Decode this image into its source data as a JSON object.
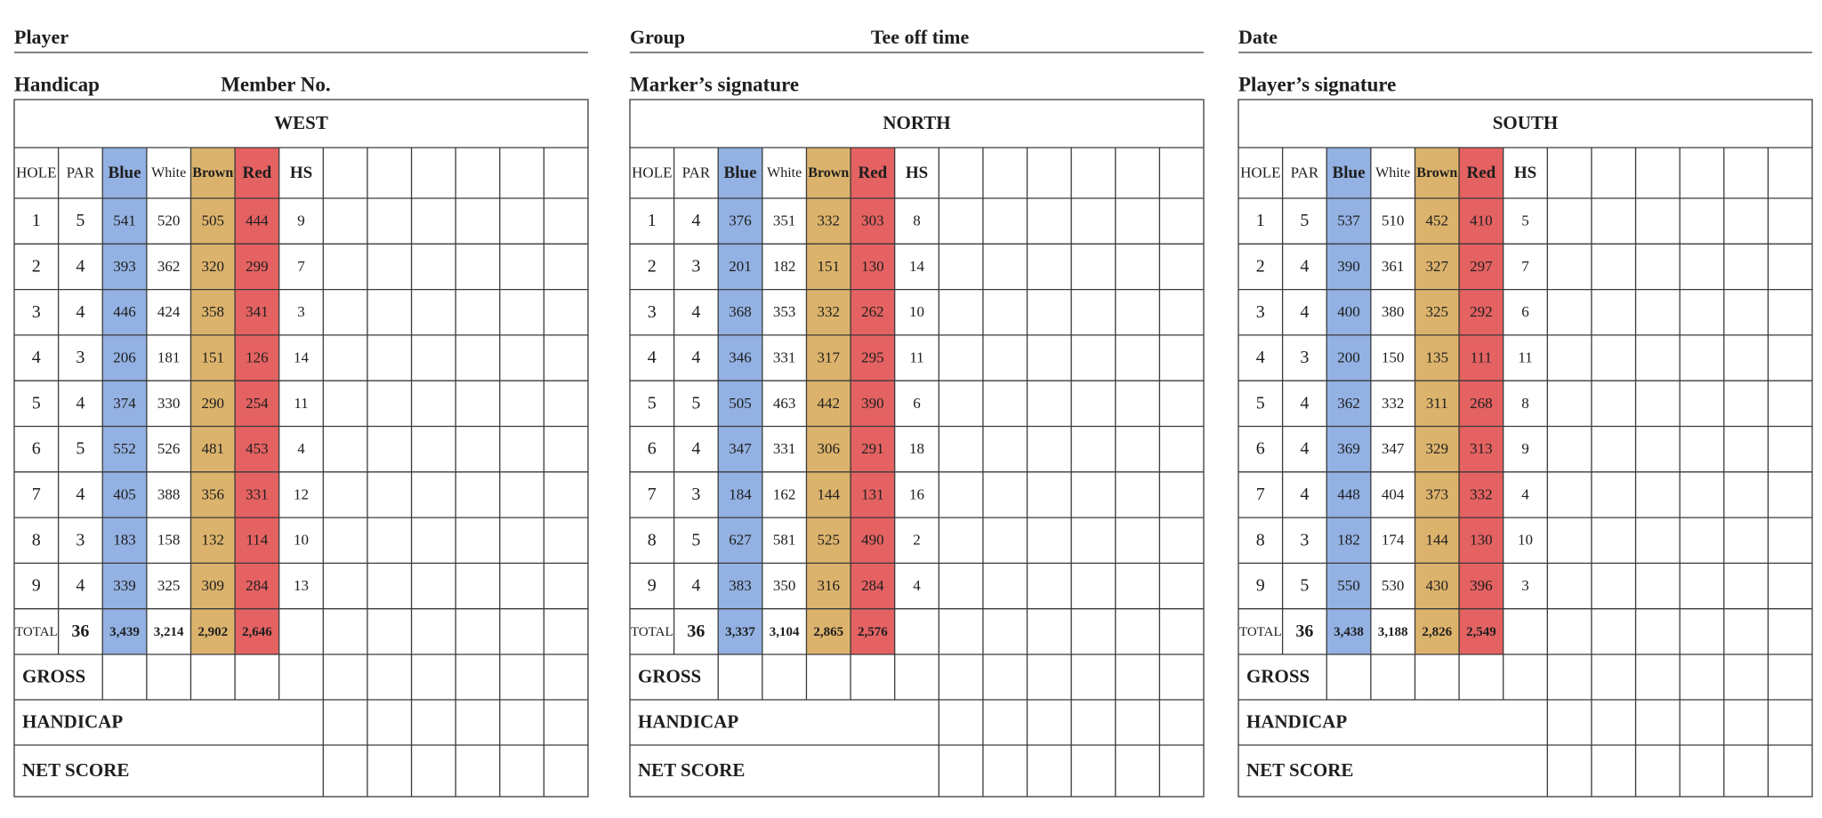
{
  "panels": [
    {
      "line1": [
        "Player"
      ],
      "line2": [
        "Handicap",
        "Member No."
      ],
      "title": "WEST",
      "columns": [
        "HOLE",
        "PAR",
        "Blue",
        "White",
        "Brown",
        "Red",
        "HS"
      ],
      "rows": [
        [
          "1",
          "5",
          "541",
          "520",
          "505",
          "444",
          "9"
        ],
        [
          "2",
          "4",
          "393",
          "362",
          "320",
          "299",
          "7"
        ],
        [
          "3",
          "4",
          "446",
          "424",
          "358",
          "341",
          "3"
        ],
        [
          "4",
          "3",
          "206",
          "181",
          "151",
          "126",
          "14"
        ],
        [
          "5",
          "4",
          "374",
          "330",
          "290",
          "254",
          "11"
        ],
        [
          "6",
          "5",
          "552",
          "526",
          "481",
          "453",
          "4"
        ],
        [
          "7",
          "4",
          "405",
          "388",
          "356",
          "331",
          "12"
        ],
        [
          "8",
          "3",
          "183",
          "158",
          "132",
          "114",
          "10"
        ],
        [
          "9",
          "4",
          "339",
          "325",
          "309",
          "284",
          "13"
        ]
      ],
      "total": [
        "TOTAL",
        "36",
        "3,439",
        "3,214",
        "2,902",
        "2,646"
      ],
      "footer": [
        "GROSS",
        "HANDICAP",
        "NET SCORE"
      ]
    },
    {
      "line1": [
        "Group",
        "Tee off time"
      ],
      "line2": [
        "Marker’s signature"
      ],
      "title": "NORTH",
      "columns": [
        "HOLE",
        "PAR",
        "Blue",
        "White",
        "Brown",
        "Red",
        "HS"
      ],
      "rows": [
        [
          "1",
          "4",
          "376",
          "351",
          "332",
          "303",
          "8"
        ],
        [
          "2",
          "3",
          "201",
          "182",
          "151",
          "130",
          "14"
        ],
        [
          "3",
          "4",
          "368",
          "353",
          "332",
          "262",
          "10"
        ],
        [
          "4",
          "4",
          "346",
          "331",
          "317",
          "295",
          "11"
        ],
        [
          "5",
          "5",
          "505",
          "463",
          "442",
          "390",
          "6"
        ],
        [
          "6",
          "4",
          "347",
          "331",
          "306",
          "291",
          "18"
        ],
        [
          "7",
          "3",
          "184",
          "162",
          "144",
          "131",
          "16"
        ],
        [
          "8",
          "5",
          "627",
          "581",
          "525",
          "490",
          "2"
        ],
        [
          "9",
          "4",
          "383",
          "350",
          "316",
          "284",
          "4"
        ]
      ],
      "total": [
        "TOTAL",
        "36",
        "3,337",
        "3,104",
        "2,865",
        "2,576"
      ],
      "footer": [
        "GROSS",
        "HANDICAP",
        "NET SCORE"
      ]
    },
    {
      "line1": [
        "Date"
      ],
      "line2": [
        "Player’s signature"
      ],
      "title": "SOUTH",
      "columns": [
        "HOLE",
        "PAR",
        "Blue",
        "White",
        "Brown",
        "Red",
        "HS"
      ],
      "rows": [
        [
          "1",
          "5",
          "537",
          "510",
          "452",
          "410",
          "5"
        ],
        [
          "2",
          "4",
          "390",
          "361",
          "327",
          "297",
          "7"
        ],
        [
          "3",
          "4",
          "400",
          "380",
          "325",
          "292",
          "6"
        ],
        [
          "4",
          "3",
          "200",
          "150",
          "135",
          "111",
          "11"
        ],
        [
          "5",
          "4",
          "362",
          "332",
          "311",
          "268",
          "8"
        ],
        [
          "6",
          "4",
          "369",
          "347",
          "329",
          "313",
          "9"
        ],
        [
          "7",
          "4",
          "448",
          "404",
          "373",
          "332",
          "4"
        ],
        [
          "8",
          "3",
          "182",
          "174",
          "144",
          "130",
          "10"
        ],
        [
          "9",
          "5",
          "550",
          "530",
          "430",
          "396",
          "3"
        ]
      ],
      "total": [
        "TOTAL",
        "36",
        "3,438",
        "3,188",
        "2,826",
        "2,549"
      ],
      "footer": [
        "GROSS",
        "HANDICAP",
        "NET SCORE"
      ]
    }
  ]
}
